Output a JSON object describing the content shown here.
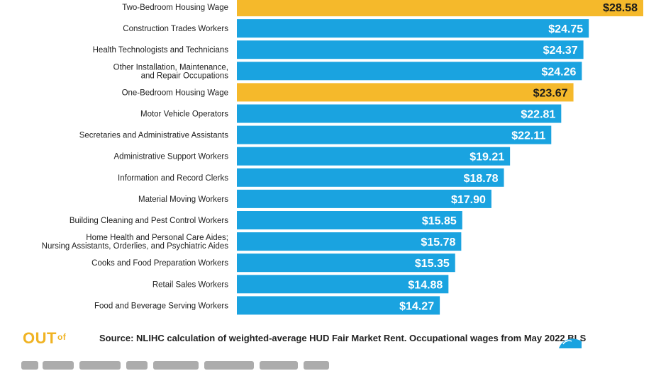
{
  "chart_data": {
    "type": "bar",
    "orientation": "horizontal",
    "categories": [
      "Two-Bedroom Housing Wage",
      "Construction Trades Workers",
      "Health Technologists and Technicians",
      "Other Installation, Maintenance,\nand Repair Occupations",
      "One-Bedroom Housing Wage",
      "Motor Vehicle Operators",
      "Secretaries and Administrative Assistants",
      "Administrative Support Workers",
      "Information and Record Clerks",
      "Material Moving Workers",
      "Building Cleaning and Pest Control Workers",
      "Home Health and Personal Care Aides;\nNursing Assistants, Orderlies, and Psychiatric Aides",
      "Cooks and Food Preparation Workers",
      "Retail Sales Workers",
      "Food and Beverage Serving Workers"
    ],
    "values": [
      28.58,
      24.75,
      24.37,
      24.26,
      23.67,
      22.81,
      22.11,
      19.21,
      18.78,
      17.9,
      15.85,
      15.78,
      15.35,
      14.88,
      14.27
    ],
    "value_labels": [
      "$28.58",
      "$24.75",
      "$24.37",
      "$24.26",
      "$23.67",
      "$22.81",
      "$22.11",
      "$19.21",
      "$18.78",
      "$17.90",
      "$15.85",
      "$15.78",
      "$15.35",
      "$14.88",
      "$14.27"
    ],
    "highlight": [
      true,
      false,
      false,
      false,
      true,
      false,
      false,
      false,
      false,
      false,
      false,
      false,
      false,
      false,
      false
    ],
    "colors": {
      "bar": "#1aa3e0",
      "highlight": "#f5b92b",
      "highlight_text": "#1a1a1a",
      "bar_text": "#ffffff"
    },
    "title": "",
    "xlabel": "",
    "ylabel": "",
    "xlim": [
      0,
      30
    ],
    "grid": false,
    "legend": "none"
  },
  "footer": {
    "logo": "OUT",
    "logo_suffix": "of",
    "source": "Source: NLIHC calculation of weighted-average HUD Fair Market Rent. Occupational wages from May 2022 BLS"
  },
  "icons": {
    "corner": "dolphin-icon"
  }
}
